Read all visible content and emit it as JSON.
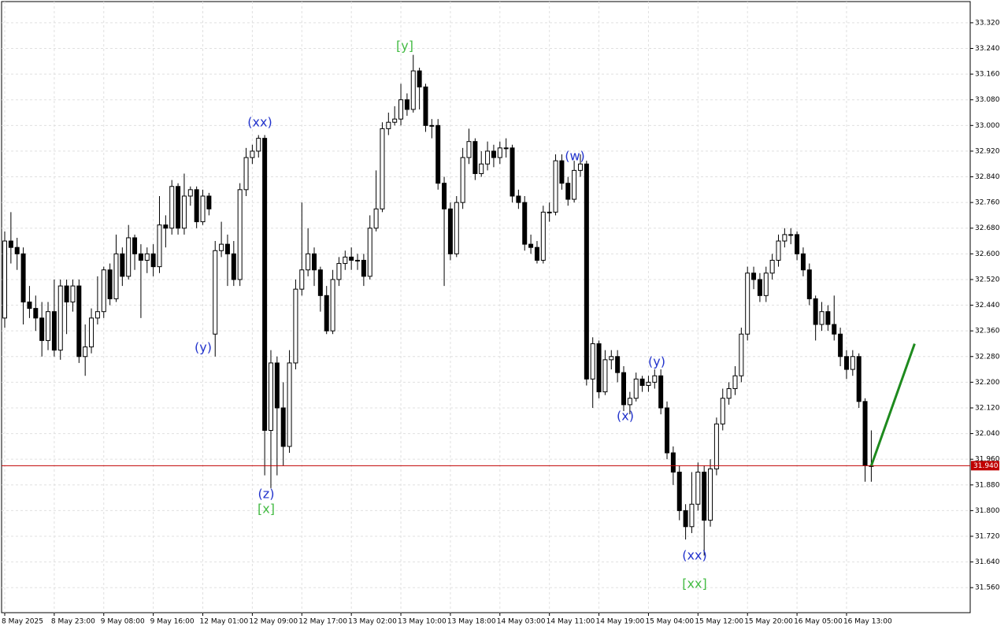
{
  "chart_data": {
    "type": "candlestick",
    "categories": [
      "8 May 2025",
      null,
      null,
      null,
      null,
      null,
      null,
      null,
      "8 May 23:00",
      null,
      null,
      null,
      null,
      null,
      null,
      null,
      "9 May 08:00",
      null,
      null,
      null,
      null,
      null,
      null,
      null,
      "9 May 16:00",
      null,
      null,
      null,
      null,
      null,
      null,
      null,
      "12 May 01:00",
      null,
      null,
      null,
      null,
      null,
      null,
      null,
      "12 May 09:00",
      null,
      null,
      null,
      null,
      null,
      null,
      null,
      "12 May 17:00",
      null,
      null,
      null,
      null,
      null,
      null,
      null,
      "13 May 02:00",
      null,
      null,
      null,
      null,
      null,
      null,
      null,
      "13 May 10:00",
      null,
      null,
      null,
      null,
      null,
      null,
      null,
      "13 May 18:00",
      null,
      null,
      null,
      null,
      null,
      null,
      null,
      "14 May 03:00",
      null,
      null,
      null,
      null,
      null,
      null,
      null,
      "14 May 11:00",
      null,
      null,
      null,
      null,
      null,
      null,
      null,
      "14 May 19:00",
      null,
      null,
      null,
      null,
      null,
      null,
      null,
      "15 May 04:00",
      null,
      null,
      null,
      null,
      null,
      null,
      null,
      "15 May 12:00",
      null,
      null,
      null,
      null,
      null,
      null,
      null,
      "15 May 20:00",
      null,
      null,
      null,
      null,
      null,
      null,
      null,
      "16 May 05:00",
      null,
      null,
      null,
      null,
      null,
      null,
      null,
      "16 May 13:00",
      null,
      null,
      null,
      null
    ],
    "open": [
      32.4,
      32.64,
      32.62,
      32.6,
      32.45,
      32.43,
      32.4,
      32.33,
      32.42,
      32.3,
      32.5,
      32.45,
      32.5,
      32.28,
      32.31,
      32.4,
      32.42,
      32.55,
      32.46,
      32.6,
      32.53,
      32.65,
      32.6,
      32.58,
      32.6,
      32.56,
      32.69,
      32.68,
      32.81,
      32.68,
      32.78,
      32.8,
      32.7,
      32.78,
      32.35,
      32.61,
      32.63,
      32.6,
      32.52,
      32.8,
      32.9,
      32.92,
      32.96,
      32.05,
      32.26,
      32.12,
      32.0,
      32.26,
      32.49,
      32.55,
      32.6,
      32.55,
      32.47,
      32.36,
      32.52,
      32.57,
      32.59,
      32.58,
      32.58,
      32.53,
      32.68,
      32.74,
      32.99,
      33.01,
      33.02,
      33.08,
      33.05,
      33.17,
      33.12,
      33.0,
      33.0,
      32.82,
      32.74,
      32.6,
      32.76,
      32.9,
      32.95,
      32.85,
      32.88,
      32.92,
      32.9,
      32.93,
      32.93,
      32.78,
      32.76,
      32.63,
      32.62,
      32.58,
      32.73,
      32.73,
      32.89,
      32.82,
      32.77,
      32.86,
      32.88,
      32.21,
      32.32,
      32.17,
      32.27,
      32.28,
      32.23,
      32.13,
      32.15,
      32.21,
      32.19,
      32.2,
      32.22,
      32.12,
      31.98,
      31.92,
      31.8,
      31.75,
      31.82,
      31.92,
      31.77,
      31.93,
      32.07,
      32.15,
      32.18,
      32.22,
      32.35,
      32.54,
      32.52,
      32.47,
      32.54,
      32.58,
      32.64,
      32.66,
      32.66,
      32.6,
      32.55,
      32.46,
      32.38,
      32.42,
      32.38,
      32.35,
      32.28,
      32.24,
      32.28,
      32.14,
      31.94
    ],
    "high": [
      32.67,
      32.73,
      32.65,
      32.62,
      32.5,
      32.47,
      32.45,
      32.45,
      32.52,
      32.52,
      32.52,
      32.52,
      32.52,
      32.38,
      32.43,
      32.53,
      32.56,
      32.57,
      32.66,
      32.62,
      32.69,
      32.66,
      32.63,
      32.62,
      32.63,
      32.78,
      32.72,
      32.83,
      32.82,
      32.85,
      32.81,
      32.81,
      32.8,
      32.79,
      32.64,
      32.7,
      32.66,
      32.64,
      32.82,
      32.93,
      32.94,
      32.97,
      32.97,
      32.3,
      32.28,
      32.2,
      32.3,
      32.52,
      32.76,
      32.68,
      32.62,
      32.56,
      32.5,
      32.55,
      32.59,
      32.61,
      32.62,
      32.6,
      32.6,
      32.72,
      32.86,
      33.01,
      33.04,
      33.06,
      33.13,
      33.1,
      33.22,
      33.18,
      33.13,
      33.02,
      33.02,
      32.84,
      32.76,
      32.78,
      32.93,
      32.99,
      32.96,
      32.92,
      32.95,
      32.94,
      32.95,
      32.96,
      32.94,
      32.8,
      32.78,
      32.66,
      32.64,
      32.75,
      32.76,
      32.91,
      32.91,
      32.84,
      32.89,
      32.91,
      32.89,
      32.34,
      32.33,
      32.3,
      32.3,
      32.3,
      32.25,
      32.17,
      32.23,
      32.22,
      32.22,
      32.24,
      32.24,
      32.14,
      32.0,
      31.94,
      31.82,
      31.92,
      31.95,
      31.94,
      31.96,
      32.09,
      32.18,
      32.2,
      32.25,
      32.37,
      32.56,
      32.56,
      32.54,
      32.56,
      32.6,
      32.66,
      32.68,
      32.68,
      32.67,
      32.62,
      32.57,
      32.47,
      32.45,
      32.44,
      32.47,
      32.37,
      32.3,
      32.3,
      32.29,
      32.15,
      32.05
    ],
    "low": [
      32.37,
      32.57,
      32.55,
      32.38,
      32.4,
      32.36,
      32.28,
      32.3,
      32.28,
      32.27,
      32.35,
      32.42,
      32.26,
      32.22,
      32.29,
      32.38,
      32.4,
      32.44,
      32.45,
      32.5,
      32.52,
      32.55,
      32.4,
      32.54,
      32.53,
      32.54,
      32.62,
      32.66,
      32.66,
      32.66,
      32.75,
      32.68,
      32.69,
      32.72,
      32.28,
      32.59,
      32.5,
      32.5,
      32.5,
      32.78,
      32.88,
      32.9,
      31.91,
      31.87,
      31.91,
      31.94,
      31.98,
      32.24,
      32.47,
      32.53,
      32.5,
      32.42,
      32.35,
      32.35,
      32.5,
      32.55,
      32.55,
      32.55,
      32.5,
      32.52,
      32.67,
      32.73,
      32.97,
      33.0,
      33.0,
      33.03,
      33.04,
      33.05,
      32.98,
      32.96,
      32.8,
      32.5,
      32.58,
      32.59,
      32.74,
      32.88,
      32.83,
      32.84,
      32.86,
      32.87,
      32.88,
      32.9,
      32.76,
      32.74,
      32.61,
      32.6,
      32.57,
      32.57,
      32.7,
      32.72,
      32.8,
      32.75,
      32.76,
      32.84,
      32.19,
      32.12,
      32.15,
      32.16,
      32.24,
      32.2,
      32.11,
      32.1,
      32.14,
      32.17,
      32.17,
      32.18,
      32.1,
      31.96,
      31.88,
      31.77,
      31.71,
      31.73,
      31.8,
      31.66,
      31.75,
      31.91,
      32.05,
      32.13,
      32.16,
      32.2,
      32.33,
      32.49,
      32.45,
      32.45,
      32.52,
      32.56,
      32.62,
      32.63,
      32.58,
      32.53,
      32.44,
      32.33,
      32.36,
      32.36,
      32.33,
      32.25,
      32.21,
      32.22,
      32.12,
      31.89,
      31.89
    ],
    "close": [
      32.64,
      32.62,
      32.6,
      32.45,
      32.43,
      32.4,
      32.33,
      32.42,
      32.3,
      32.5,
      32.45,
      32.5,
      32.28,
      32.31,
      32.4,
      32.42,
      32.55,
      32.46,
      32.6,
      32.53,
      32.65,
      32.6,
      32.58,
      32.6,
      32.56,
      32.69,
      32.68,
      32.81,
      32.68,
      32.78,
      32.8,
      32.7,
      32.78,
      32.74,
      32.61,
      32.63,
      32.6,
      32.52,
      32.8,
      32.9,
      32.92,
      32.96,
      32.05,
      32.26,
      32.12,
      32.0,
      32.26,
      32.49,
      32.55,
      32.6,
      32.55,
      32.47,
      32.36,
      32.52,
      32.57,
      32.59,
      32.58,
      32.58,
      32.53,
      32.68,
      32.74,
      32.99,
      33.01,
      33.02,
      33.08,
      33.05,
      33.17,
      33.12,
      33.0,
      33.0,
      32.82,
      32.74,
      32.6,
      32.76,
      32.9,
      32.95,
      32.85,
      32.88,
      32.92,
      32.9,
      32.93,
      32.93,
      32.78,
      32.76,
      32.63,
      32.62,
      32.58,
      32.73,
      32.73,
      32.89,
      32.82,
      32.77,
      32.86,
      32.88,
      32.21,
      32.32,
      32.17,
      32.27,
      32.28,
      32.23,
      32.13,
      32.15,
      32.21,
      32.19,
      32.2,
      32.22,
      32.12,
      31.98,
      31.92,
      31.8,
      31.75,
      31.82,
      31.92,
      31.77,
      31.93,
      32.07,
      32.15,
      32.18,
      32.22,
      32.35,
      32.54,
      32.52,
      32.47,
      32.54,
      32.58,
      32.64,
      32.66,
      32.66,
      32.6,
      32.55,
      32.46,
      32.38,
      32.42,
      32.38,
      32.35,
      32.28,
      32.24,
      32.28,
      32.14,
      31.94,
      31.94
    ],
    "up_color": "#ffffff",
    "down_color": "#000000",
    "wick_color": "#000000",
    "ylim": [
      31.482,
      33.386
    ],
    "yticks": [
      {
        "value": 31.56,
        "label": "31.560"
      },
      {
        "value": 31.64,
        "label": "31.640"
      },
      {
        "value": 31.72,
        "label": "31.720"
      },
      {
        "value": 31.8,
        "label": "31.800"
      },
      {
        "value": 31.88,
        "label": "31.880"
      },
      {
        "value": 31.96,
        "label": "31.960"
      },
      {
        "value": 32.04,
        "label": "32.040"
      },
      {
        "value": 32.12,
        "label": "32.120"
      },
      {
        "value": 32.2,
        "label": "32.200"
      },
      {
        "value": 32.28,
        "label": "32.280"
      },
      {
        "value": 32.36,
        "label": "32.360"
      },
      {
        "value": 32.44,
        "label": "32.440"
      },
      {
        "value": 32.52,
        "label": "32.520"
      },
      {
        "value": 32.6,
        "label": "32.600"
      },
      {
        "value": 32.68,
        "label": "32.680"
      },
      {
        "value": 32.76,
        "label": "32.760"
      },
      {
        "value": 32.84,
        "label": "32.840"
      },
      {
        "value": 32.92,
        "label": "32.920"
      },
      {
        "value": 33.0,
        "label": "33.000"
      },
      {
        "value": 33.08,
        "label": "33.080"
      },
      {
        "value": 33.16,
        "label": "33.160"
      },
      {
        "value": 33.24,
        "label": "33.240"
      },
      {
        "value": 33.32,
        "label": "33.320"
      }
    ],
    "grid": true,
    "current_price": {
      "value": 31.94,
      "label": "31.940",
      "color": "#c00000"
    },
    "projection": {
      "color": "#1e8a1e",
      "values": [
        31.94,
        32.32
      ]
    },
    "annotations": [
      {
        "text": "(y)",
        "color": "#2233cc"
      },
      {
        "text": "(xx)",
        "color": "#2233cc"
      },
      {
        "text": "[y]",
        "color": "#44bb44"
      },
      {
        "text": "(z)",
        "color": "#2233cc"
      },
      {
        "text": "[x]",
        "color": "#44bb44"
      },
      {
        "text": "(w)",
        "color": "#2233cc"
      },
      {
        "text": "(y)",
        "color": "#2233cc"
      },
      {
        "text": "(x)",
        "color": "#2233cc"
      },
      {
        "text": "(xx)",
        "color": "#2233cc"
      },
      {
        "text": "[xx]",
        "color": "#44bb44"
      }
    ]
  }
}
